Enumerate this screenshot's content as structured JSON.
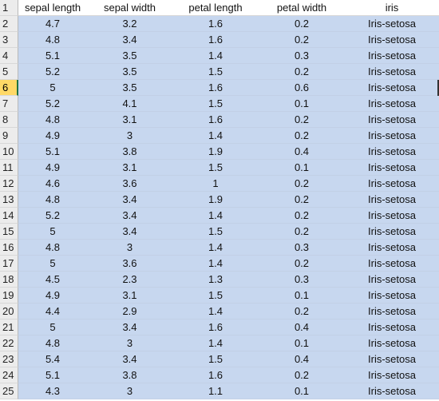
{
  "spreadsheet": {
    "row_numbers": [
      "1",
      "2",
      "3",
      "4",
      "5",
      "6",
      "7",
      "8",
      "9",
      "10",
      "11",
      "12",
      "13",
      "14",
      "15",
      "16",
      "17",
      "18",
      "19",
      "20",
      "21",
      "22",
      "23",
      "24",
      "25"
    ],
    "active_row": "6",
    "columns": [
      "sepal length",
      "sepal width",
      "petal length",
      "petal width",
      "iris"
    ],
    "rows": [
      [
        "4.7",
        "3.2",
        "1.6",
        "0.2",
        "Iris-setosa"
      ],
      [
        "4.8",
        "3.4",
        "1.6",
        "0.2",
        "Iris-setosa"
      ],
      [
        "5.1",
        "3.5",
        "1.4",
        "0.3",
        "Iris-setosa"
      ],
      [
        "5.2",
        "3.5",
        "1.5",
        "0.2",
        "Iris-setosa"
      ],
      [
        "5",
        "3.5",
        "1.6",
        "0.6",
        "Iris-setosa"
      ],
      [
        "5.2",
        "4.1",
        "1.5",
        "0.1",
        "Iris-setosa"
      ],
      [
        "4.8",
        "3.1",
        "1.6",
        "0.2",
        "Iris-setosa"
      ],
      [
        "4.9",
        "3",
        "1.4",
        "0.2",
        "Iris-setosa"
      ],
      [
        "5.1",
        "3.8",
        "1.9",
        "0.4",
        "Iris-setosa"
      ],
      [
        "4.9",
        "3.1",
        "1.5",
        "0.1",
        "Iris-setosa"
      ],
      [
        "4.6",
        "3.6",
        "1",
        "0.2",
        "Iris-setosa"
      ],
      [
        "4.8",
        "3.4",
        "1.9",
        "0.2",
        "Iris-setosa"
      ],
      [
        "5.2",
        "3.4",
        "1.4",
        "0.2",
        "Iris-setosa"
      ],
      [
        "5",
        "3.4",
        "1.5",
        "0.2",
        "Iris-setosa"
      ],
      [
        "4.8",
        "3",
        "1.4",
        "0.3",
        "Iris-setosa"
      ],
      [
        "5",
        "3.6",
        "1.4",
        "0.2",
        "Iris-setosa"
      ],
      [
        "4.5",
        "2.3",
        "1.3",
        "0.3",
        "Iris-setosa"
      ],
      [
        "4.9",
        "3.1",
        "1.5",
        "0.1",
        "Iris-setosa"
      ],
      [
        "4.4",
        "2.9",
        "1.4",
        "0.2",
        "Iris-setosa"
      ],
      [
        "5",
        "3.4",
        "1.6",
        "0.4",
        "Iris-setosa"
      ],
      [
        "4.8",
        "3",
        "1.4",
        "0.1",
        "Iris-setosa"
      ],
      [
        "5.4",
        "3.4",
        "1.5",
        "0.4",
        "Iris-setosa"
      ],
      [
        "5.1",
        "3.8",
        "1.6",
        "0.2",
        "Iris-setosa"
      ],
      [
        "4.3",
        "3",
        "1.1",
        "0.1",
        "Iris-setosa"
      ]
    ]
  },
  "colors": {
    "selection": "#c7d7ef",
    "header_bg": "#ececec",
    "active_row_highlight": "#ffd966"
  }
}
